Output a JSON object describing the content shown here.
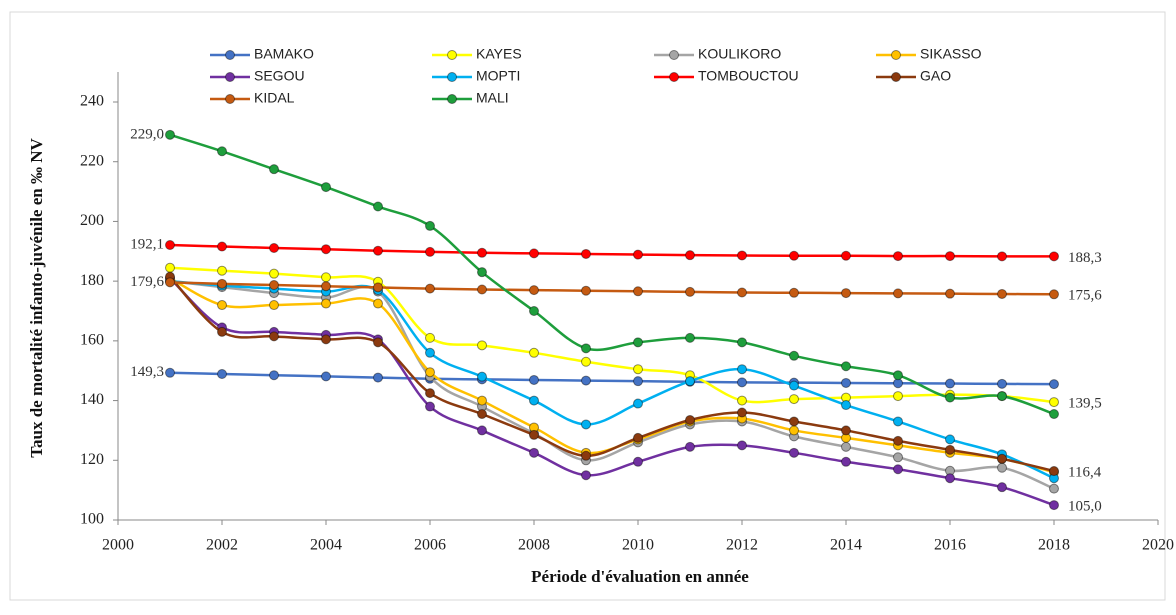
{
  "chart_data": {
    "type": "line",
    "ylabel": "Taux de mortalité infanto-juvénile en ‰ NV",
    "xlabel": "Période d'évaluation en année",
    "x": [
      2001,
      2002,
      2003,
      2004,
      2005,
      2006,
      2007,
      2008,
      2009,
      2010,
      2011,
      2012,
      2013,
      2014,
      2015,
      2016,
      2017,
      2018
    ],
    "xlim": [
      2000,
      2020
    ],
    "xticks": [
      2000,
      2002,
      2004,
      2006,
      2008,
      2010,
      2012,
      2014,
      2016,
      2018,
      2020
    ],
    "ylim": [
      100,
      240
    ],
    "yticks": [
      100,
      120,
      140,
      160,
      180,
      200,
      220,
      240
    ],
    "series": [
      {
        "name": "BAMAKO",
        "color": "#4472c4",
        "values": [
          149.3,
          148.9,
          148.5,
          148.1,
          147.7,
          147.3,
          147.1,
          146.9,
          146.7,
          146.5,
          146.3,
          146.1,
          146.0,
          145.9,
          145.8,
          145.7,
          145.6,
          145.5
        ],
        "value_labels": [
          "149,3",
          null,
          null,
          null,
          null,
          null,
          null,
          null,
          null,
          null,
          null,
          null,
          null,
          null,
          null,
          null,
          null,
          null
        ]
      },
      {
        "name": "KAYES",
        "color": "#ffff00",
        "values": [
          184.5,
          183.5,
          182.5,
          181.3,
          179.8,
          161,
          158.5,
          156,
          153,
          150.5,
          148.5,
          140,
          140.5,
          141,
          141.5,
          142,
          141.5,
          139.5
        ],
        "value_labels": [
          null,
          null,
          null,
          null,
          null,
          null,
          null,
          null,
          null,
          null,
          null,
          null,
          null,
          null,
          null,
          null,
          null,
          "139,5"
        ]
      },
      {
        "name": "KOULIKORO",
        "color": "#a5a5a5",
        "values": [
          180,
          178,
          176,
          174.5,
          176.5,
          148,
          138,
          129,
          120,
          126,
          132,
          133,
          128,
          124.5,
          121,
          116.5,
          117.5,
          110.5
        ]
      },
      {
        "name": "SIKASSO",
        "color": "#ffc000",
        "values": [
          181,
          172,
          172,
          172.5,
          172.5,
          149.5,
          140,
          131,
          122.5,
          127,
          133,
          134,
          130,
          127.5,
          125,
          122.5,
          120.5,
          116
        ]
      },
      {
        "name": "SEGOU",
        "color": "#7030a0",
        "values": [
          181,
          164.5,
          163,
          162,
          160.5,
          138,
          130,
          122.5,
          115,
          119.5,
          124.5,
          125,
          122.5,
          119.5,
          117,
          114,
          111,
          105.0
        ],
        "value_labels": [
          null,
          null,
          null,
          null,
          null,
          null,
          null,
          null,
          null,
          null,
          null,
          null,
          null,
          null,
          null,
          null,
          null,
          "105,0"
        ]
      },
      {
        "name": "MOPTI",
        "color": "#00b0f0",
        "values": [
          180,
          178.5,
          177.5,
          176.5,
          177,
          156,
          148,
          140,
          132,
          139,
          146.5,
          150.5,
          145,
          138.5,
          133,
          127,
          122,
          114
        ]
      },
      {
        "name": "TOMBOUCTOU",
        "color": "#ff0000",
        "values": [
          192.1,
          191.6,
          191.1,
          190.7,
          190.2,
          189.8,
          189.5,
          189.3,
          189.1,
          188.9,
          188.7,
          188.6,
          188.5,
          188.5,
          188.4,
          188.4,
          188.3,
          188.3
        ],
        "value_labels": [
          "192,1",
          null,
          null,
          null,
          null,
          null,
          null,
          null,
          null,
          null,
          null,
          null,
          null,
          null,
          null,
          null,
          null,
          "188,3"
        ]
      },
      {
        "name": "GAO",
        "color": "#8b3a0f",
        "values": [
          181.5,
          163,
          161.5,
          160.5,
          159.5,
          142.5,
          135.5,
          128.5,
          121.5,
          127.5,
          133.5,
          136,
          133,
          130,
          126.5,
          123.5,
          120.5,
          116.4
        ],
        "value_labels": [
          null,
          null,
          null,
          null,
          null,
          null,
          null,
          null,
          null,
          null,
          null,
          null,
          null,
          null,
          null,
          null,
          null,
          "116,4"
        ]
      },
      {
        "name": "KIDAL",
        "color": "#c55a11",
        "values": [
          179.6,
          179.1,
          178.7,
          178.3,
          177.9,
          177.5,
          177.2,
          177,
          176.8,
          176.6,
          176.4,
          176.2,
          176.1,
          176,
          175.9,
          175.8,
          175.7,
          175.6
        ],
        "value_labels": [
          "179,6",
          null,
          null,
          null,
          null,
          null,
          null,
          null,
          null,
          null,
          null,
          null,
          null,
          null,
          null,
          null,
          null,
          "175,6"
        ]
      },
      {
        "name": "MALI",
        "color": "#1e9e3c",
        "values": [
          229.0,
          223.5,
          217.5,
          211.5,
          205,
          198.5,
          183,
          170,
          157.5,
          159.5,
          161,
          159.5,
          155,
          151.5,
          148.5,
          141,
          141.5,
          135.5
        ],
        "value_labels": [
          "229,0",
          null,
          null,
          null,
          null,
          null,
          null,
          null,
          null,
          null,
          null,
          null,
          null,
          null,
          null,
          null,
          null,
          null
        ]
      }
    ]
  }
}
